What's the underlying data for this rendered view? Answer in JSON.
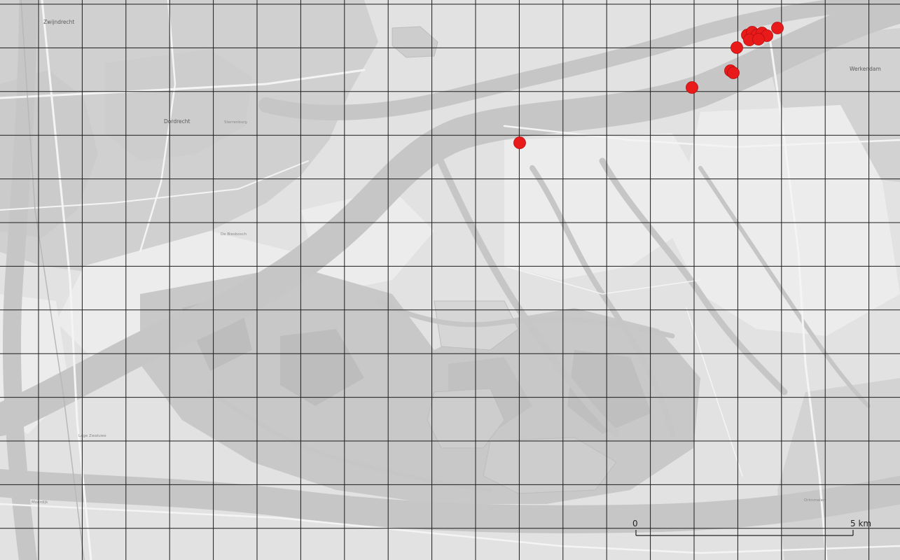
{
  "map": {
    "base_color": "#dedede",
    "land_color": "#e4e4e4",
    "water_color": "#cacaca",
    "field_color": "#ededed",
    "urban_color": "#d2d2d2",
    "nature_color": "#c6c6c6",
    "road_color": "#f8f8f8",
    "grid_color": "#1c1c1c",
    "marker_color": "#e81a1a",
    "marker_stroke": "#b01010"
  },
  "places": {
    "zwijndrecht": "Zwijndrecht",
    "dordrecht": "Dordrecht",
    "sterrenburg": "Sterrenburg",
    "werkendam": "Werkendam",
    "de_biesbosch": "De Biesbosch",
    "moerdijk": "Moerdijk",
    "drimmelen": "Drimmelen",
    "lage_zwaluwe": "Lage Zwaluwe"
  },
  "scale": {
    "start_label": "0",
    "end_label": "5 km"
  }
}
